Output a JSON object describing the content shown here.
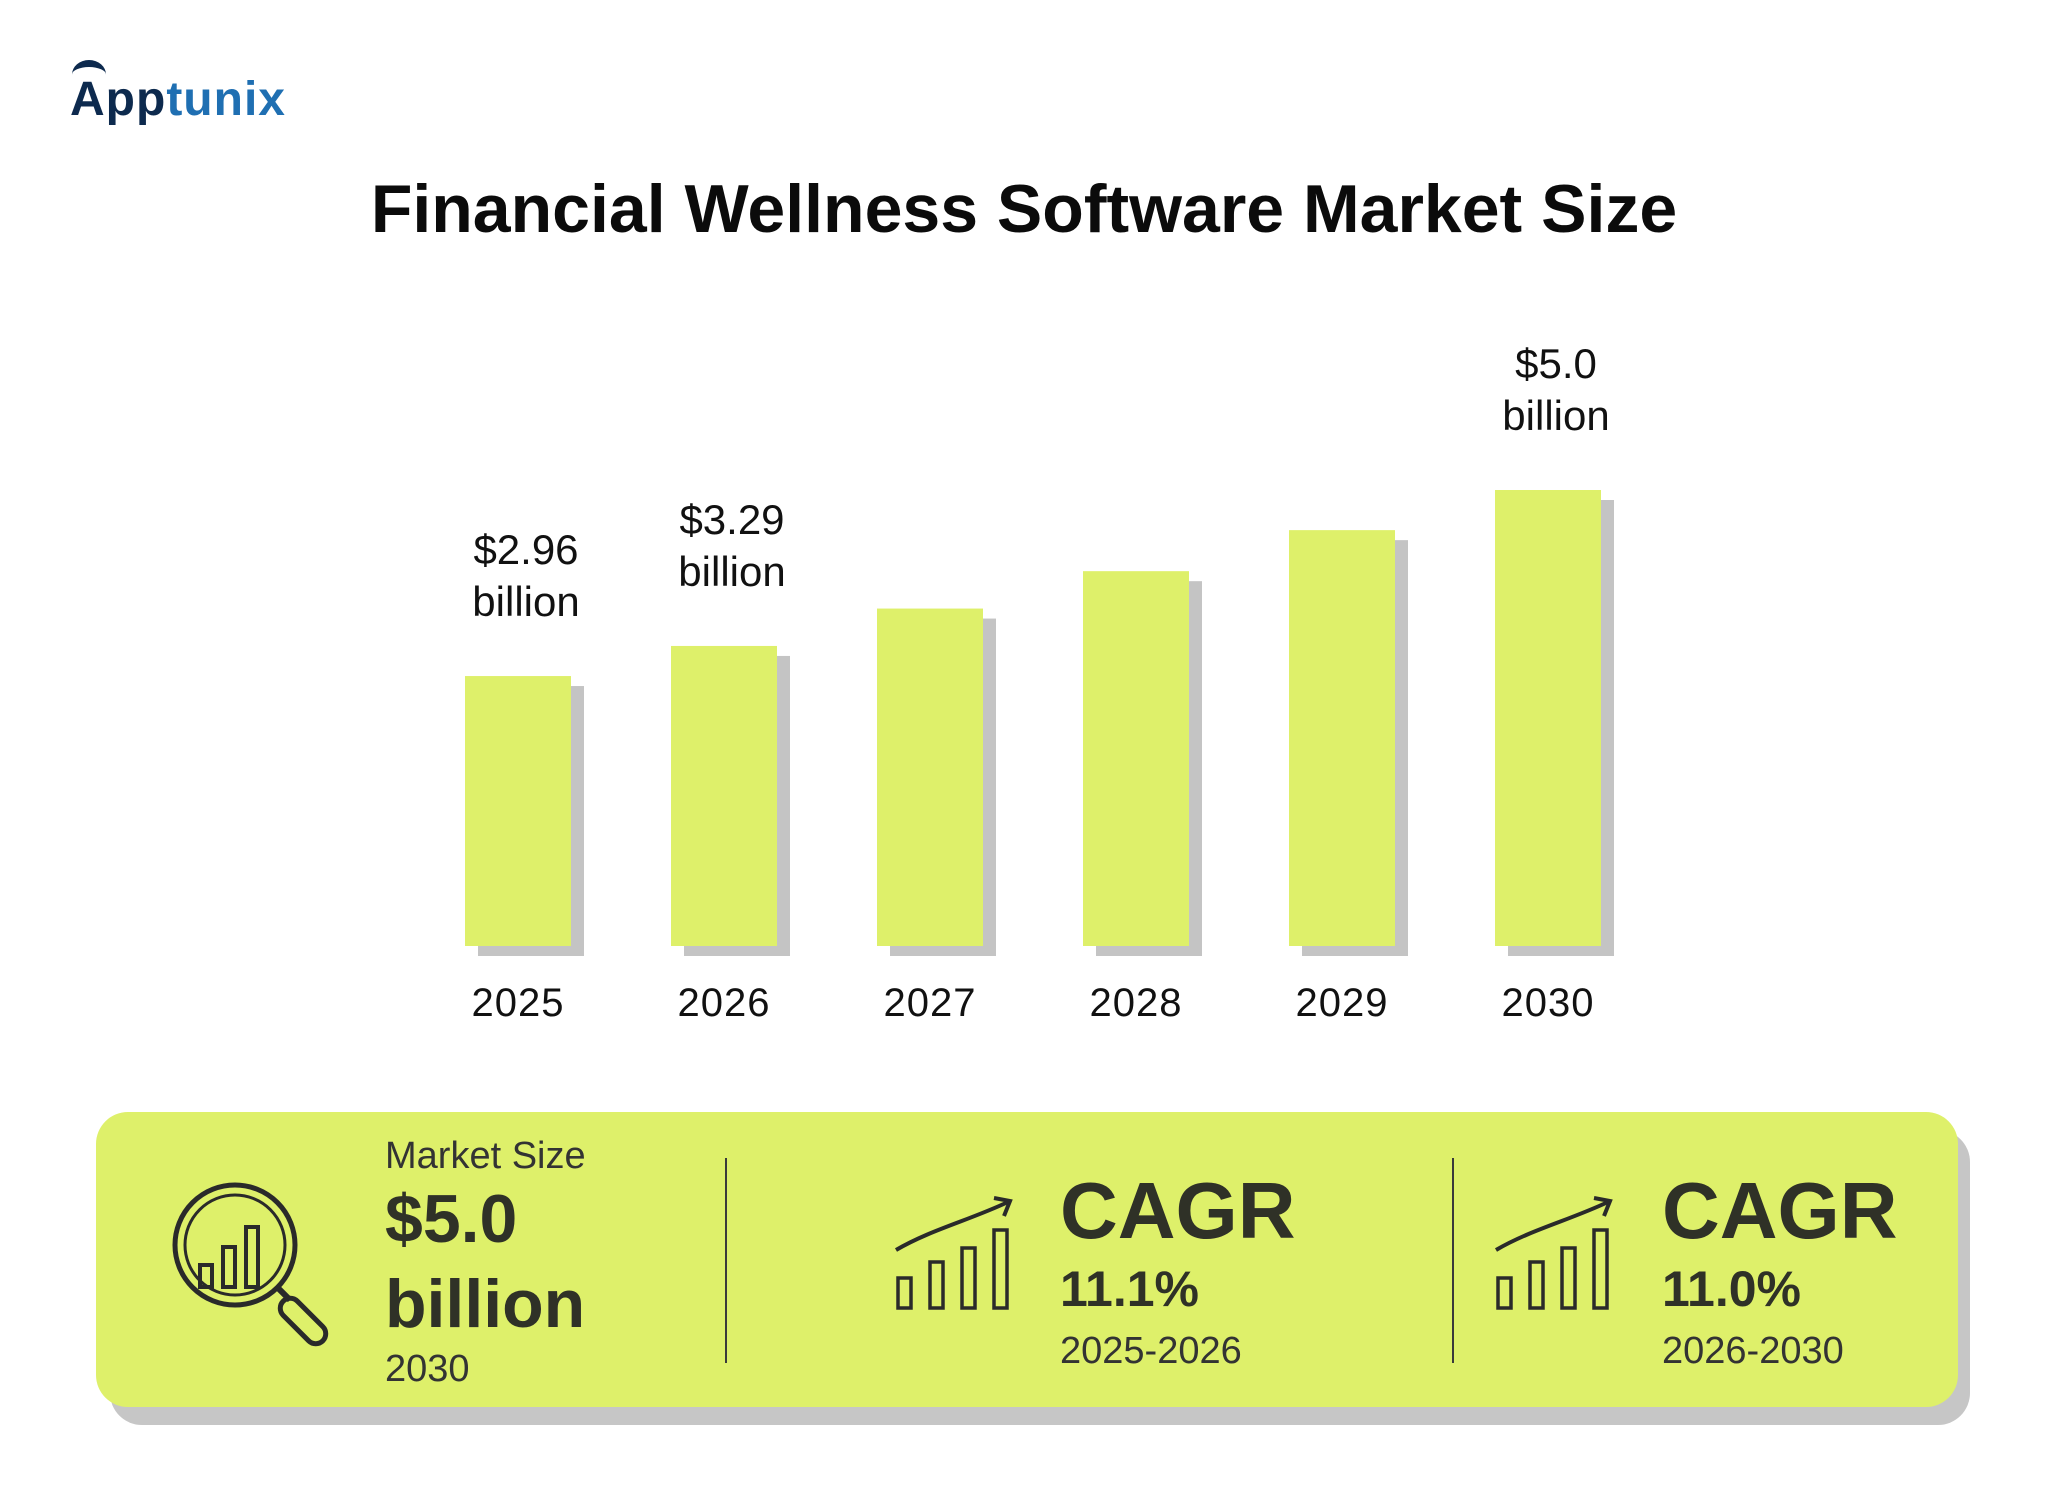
{
  "brand": {
    "logo_a": "A",
    "logo_pp": "pp",
    "logo_rest": "tunix",
    "colors": {
      "dark": "#0d2a4e",
      "accent": "#1f6fb2"
    }
  },
  "chart_data": {
    "type": "bar",
    "title": "Financial Wellness Software Market Size",
    "categories": [
      "2025",
      "2026",
      "2027",
      "2028",
      "2029",
      "2030"
    ],
    "values": [
      2.96,
      3.29,
      3.7,
      4.11,
      4.56,
      5.0
    ],
    "value_labels": [
      [
        "$2.96",
        "billion"
      ],
      [
        "$3.29",
        "billion"
      ],
      null,
      null,
      null,
      [
        "$5.0",
        "billion"
      ]
    ],
    "xlabel": "",
    "ylabel": "",
    "ylim": [
      0,
      5.0
    ],
    "grid": false,
    "legend": "none",
    "bar_color": "#def06a",
    "shadow_color": "#c4c4c4"
  },
  "stats": {
    "market": {
      "label": "Market Size",
      "value_line1": "$5.0",
      "value_line2": "billion",
      "year": "2030",
      "icon": "magnifier-bar-chart-icon"
    },
    "cagr1": {
      "title": "CAGR",
      "value": "11.1%",
      "period": "2025-2026",
      "icon": "growth-bar-chart-icon"
    },
    "cagr2": {
      "title": "CAGR",
      "value": "11.0%",
      "period": "2026-2030",
      "icon": "growth-bar-chart-icon"
    },
    "panel_color": "#def06a"
  }
}
